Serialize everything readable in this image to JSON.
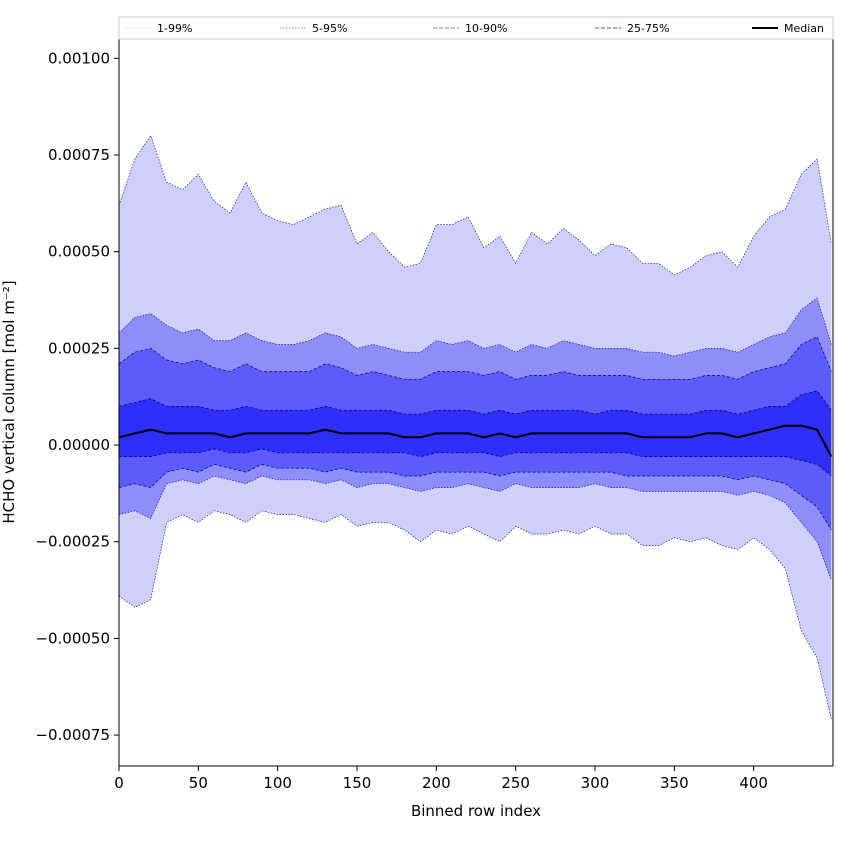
{
  "chart_data": {
    "type": "area",
    "title": "",
    "xlabel": "Binned row index",
    "ylabel": "HCHO vertical column [mol m⁻²]",
    "xlim": [
      0,
      450
    ],
    "ylim": [
      -0.00083,
      0.00105
    ],
    "x_ticks": [
      0,
      50,
      100,
      150,
      200,
      250,
      300,
      350,
      400
    ],
    "x_tick_labels": [
      "0",
      "50",
      "100",
      "150",
      "200",
      "250",
      "300",
      "350",
      "400"
    ],
    "y_ticks": [
      0.001,
      0.00075,
      0.0005,
      0.00025,
      0,
      -0.00025,
      -0.0005,
      -0.00075
    ],
    "y_tick_labels": [
      "0.00100",
      "0.00075",
      "0.00050",
      "0.00025",
      "0.00000",
      "−0.00025",
      "−0.00050",
      "−0.00075"
    ],
    "grid": false,
    "legend_position": "top (above plot, single row)",
    "legend": [
      {
        "label": "1-99%",
        "style": "dotted",
        "color": "#d8d8f2"
      },
      {
        "label": "5-95%",
        "style": "dotted",
        "color": "#8c8cd9"
      },
      {
        "label": "10-90%",
        "style": "dashed",
        "color": "#7f7fe6"
      },
      {
        "label": "25-75%",
        "style": "dashed",
        "color": "#4d4de6"
      },
      {
        "label": "Median",
        "style": "solid",
        "color": "#000000"
      }
    ],
    "band_colors": [
      "#cfcffc",
      "#8e8efa",
      "#5c5cfb",
      "#2e2efd"
    ],
    "x": [
      0,
      10,
      20,
      30,
      40,
      50,
      60,
      70,
      80,
      90,
      100,
      110,
      120,
      130,
      140,
      150,
      160,
      170,
      180,
      190,
      200,
      210,
      220,
      230,
      240,
      250,
      260,
      270,
      280,
      290,
      300,
      310,
      320,
      330,
      340,
      350,
      360,
      370,
      380,
      390,
      400,
      410,
      420,
      430,
      440,
      449
    ],
    "series": [
      {
        "name": "1-99%",
        "lower": [
          -0.00039,
          -0.00042,
          -0.0004,
          -0.0002,
          -0.00018,
          -0.0002,
          -0.00017,
          -0.00018,
          -0.0002,
          -0.00017,
          -0.00018,
          -0.00018,
          -0.00019,
          -0.0002,
          -0.00018,
          -0.00021,
          -0.0002,
          -0.0002,
          -0.00022,
          -0.00025,
          -0.00022,
          -0.00023,
          -0.00021,
          -0.00023,
          -0.00025,
          -0.00021,
          -0.00023,
          -0.00023,
          -0.00022,
          -0.00023,
          -0.00021,
          -0.00023,
          -0.00023,
          -0.00026,
          -0.00026,
          -0.00024,
          -0.00025,
          -0.00024,
          -0.00026,
          -0.00027,
          -0.00024,
          -0.00027,
          -0.00032,
          -0.00048,
          -0.00055,
          -0.00071
        ],
        "upper": [
          0.00062,
          0.00074,
          0.0008,
          0.00068,
          0.00066,
          0.0007,
          0.00063,
          0.0006,
          0.00068,
          0.0006,
          0.00058,
          0.00057,
          0.00059,
          0.00061,
          0.00062,
          0.00052,
          0.00055,
          0.0005,
          0.00046,
          0.00047,
          0.00057,
          0.00057,
          0.00059,
          0.00051,
          0.00054,
          0.00047,
          0.00055,
          0.00052,
          0.00056,
          0.00053,
          0.00049,
          0.00052,
          0.00051,
          0.00047,
          0.00047,
          0.00044,
          0.00046,
          0.00049,
          0.0005,
          0.00046,
          0.00054,
          0.00059,
          0.00061,
          0.0007,
          0.00074,
          0.00052
        ]
      },
      {
        "name": "5-95%",
        "lower": [
          -0.00018,
          -0.00017,
          -0.00019,
          -0.0001,
          -9e-05,
          -0.0001,
          -8e-05,
          -9e-05,
          -0.0001,
          -8e-05,
          -9e-05,
          -9e-05,
          -9e-05,
          -0.0001,
          -9e-05,
          -0.00011,
          -0.0001,
          -0.0001,
          -0.00011,
          -0.00012,
          -0.00011,
          -0.00011,
          -0.0001,
          -0.00011,
          -0.00012,
          -0.0001,
          -0.00011,
          -0.00011,
          -0.00011,
          -0.00011,
          -0.0001,
          -0.00011,
          -0.00011,
          -0.00012,
          -0.00012,
          -0.00012,
          -0.00012,
          -0.00012,
          -0.00012,
          -0.00013,
          -0.00012,
          -0.00013,
          -0.00015,
          -0.0002,
          -0.00025,
          -0.00035
        ],
        "upper": [
          0.00029,
          0.00033,
          0.00034,
          0.00031,
          0.00029,
          0.0003,
          0.00027,
          0.00027,
          0.00029,
          0.00027,
          0.00026,
          0.00026,
          0.00027,
          0.00029,
          0.00028,
          0.00025,
          0.00026,
          0.00025,
          0.00024,
          0.00024,
          0.00027,
          0.00026,
          0.00027,
          0.00025,
          0.00026,
          0.00024,
          0.00026,
          0.00025,
          0.00027,
          0.00026,
          0.00025,
          0.00025,
          0.00025,
          0.00024,
          0.00024,
          0.00023,
          0.00024,
          0.00025,
          0.00025,
          0.00024,
          0.00026,
          0.00028,
          0.00029,
          0.00035,
          0.00038,
          0.00026
        ]
      },
      {
        "name": "10-90%",
        "lower": [
          -0.00011,
          -0.0001,
          -0.00011,
          -7e-05,
          -6e-05,
          -7e-05,
          -5e-05,
          -6e-05,
          -7e-05,
          -5e-05,
          -6e-05,
          -6e-05,
          -6e-05,
          -7e-05,
          -6e-05,
          -7e-05,
          -7e-05,
          -7e-05,
          -8e-05,
          -8e-05,
          -7e-05,
          -7e-05,
          -7e-05,
          -7e-05,
          -8e-05,
          -7e-05,
          -7e-05,
          -7e-05,
          -7e-05,
          -7e-05,
          -7e-05,
          -7e-05,
          -8e-05,
          -8e-05,
          -8e-05,
          -8e-05,
          -8e-05,
          -8e-05,
          -8e-05,
          -9e-05,
          -8e-05,
          -9e-05,
          -0.0001,
          -0.00013,
          -0.00016,
          -0.00022
        ],
        "upper": [
          0.00021,
          0.00024,
          0.00025,
          0.00022,
          0.00021,
          0.00022,
          0.0002,
          0.00019,
          0.00021,
          0.00019,
          0.00019,
          0.00019,
          0.00019,
          0.00021,
          0.0002,
          0.00018,
          0.00019,
          0.00018,
          0.00017,
          0.00017,
          0.00019,
          0.00019,
          0.00019,
          0.00018,
          0.00019,
          0.00017,
          0.00018,
          0.00018,
          0.00019,
          0.00018,
          0.00018,
          0.00018,
          0.00018,
          0.00017,
          0.00017,
          0.00017,
          0.00017,
          0.00018,
          0.00018,
          0.00017,
          0.00019,
          0.0002,
          0.00021,
          0.00026,
          0.00028,
          0.00019
        ]
      },
      {
        "name": "25-75%",
        "lower": [
          -3e-05,
          -3e-05,
          -3e-05,
          -2e-05,
          -2e-05,
          -2e-05,
          -1e-05,
          -2e-05,
          -2e-05,
          -1e-05,
          -2e-05,
          -2e-05,
          -2e-05,
          -2e-05,
          -2e-05,
          -2e-05,
          -2e-05,
          -2e-05,
          -2e-05,
          -3e-05,
          -2e-05,
          -2e-05,
          -2e-05,
          -2e-05,
          -3e-05,
          -2e-05,
          -2e-05,
          -2e-05,
          -2e-05,
          -2e-05,
          -2e-05,
          -2e-05,
          -2e-05,
          -3e-05,
          -3e-05,
          -3e-05,
          -3e-05,
          -3e-05,
          -3e-05,
          -3e-05,
          -3e-05,
          -3e-05,
          -3e-05,
          -4e-05,
          -5e-05,
          -8e-05
        ],
        "upper": [
          0.0001,
          0.00011,
          0.00012,
          0.0001,
          0.0001,
          0.0001,
          9e-05,
          9e-05,
          0.0001,
          9e-05,
          9e-05,
          9e-05,
          9e-05,
          0.0001,
          9e-05,
          9e-05,
          9e-05,
          9e-05,
          8e-05,
          8e-05,
          9e-05,
          9e-05,
          9e-05,
          8e-05,
          9e-05,
          8e-05,
          9e-05,
          9e-05,
          9e-05,
          9e-05,
          8e-05,
          9e-05,
          9e-05,
          8e-05,
          8e-05,
          8e-05,
          8e-05,
          9e-05,
          9e-05,
          8e-05,
          9e-05,
          0.0001,
          0.0001,
          0.00013,
          0.00014,
          9e-05
        ]
      },
      {
        "name": "Median",
        "values": [
          2e-05,
          3e-05,
          4e-05,
          3e-05,
          3e-05,
          3e-05,
          3e-05,
          2e-05,
          3e-05,
          3e-05,
          3e-05,
          3e-05,
          3e-05,
          4e-05,
          3e-05,
          3e-05,
          3e-05,
          3e-05,
          2e-05,
          2e-05,
          3e-05,
          3e-05,
          3e-05,
          2e-05,
          3e-05,
          2e-05,
          3e-05,
          3e-05,
          3e-05,
          3e-05,
          3e-05,
          3e-05,
          3e-05,
          2e-05,
          2e-05,
          2e-05,
          2e-05,
          3e-05,
          3e-05,
          2e-05,
          3e-05,
          4e-05,
          5e-05,
          5e-05,
          4e-05,
          -3e-05
        ]
      }
    ]
  }
}
